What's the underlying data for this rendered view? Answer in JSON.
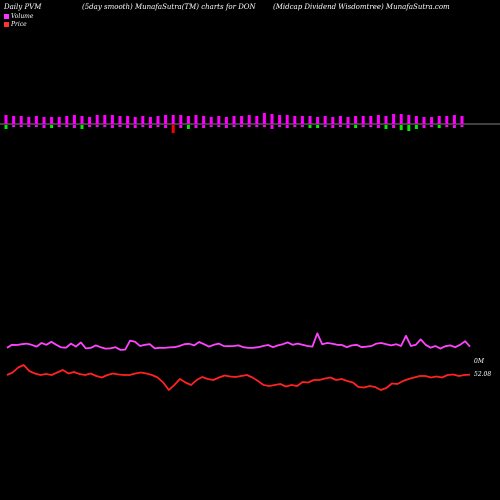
{
  "header": {
    "left": "Daily PVM",
    "mid": "(5day smooth) MunafaSutra(TM) charts for DON",
    "right": "(Midcap Dividend Wisdomtree) MunafaSutra.com"
  },
  "legend": {
    "volume_label": "Volume",
    "price_label": "Price",
    "volume_color": "#ff33ff",
    "price_color": "#ff3333"
  },
  "chart_data": [
    {
      "type": "bar",
      "subject": "volume bars",
      "colors": {
        "up": "#ff00ff",
        "down": "#00ee00",
        "neg": "#ff0000",
        "baseline": "#ffffff"
      },
      "bars": [
        {
          "up": 9,
          "down": 4,
          "dir": "green"
        },
        {
          "up": 8,
          "down": 2,
          "dir": "magenta"
        },
        {
          "up": 8,
          "down": 2,
          "dir": "magenta"
        },
        {
          "up": 7,
          "down": 2,
          "dir": "magenta"
        },
        {
          "up": 8,
          "down": 2,
          "dir": "magenta"
        },
        {
          "up": 7,
          "down": 3,
          "dir": "magenta"
        },
        {
          "up": 7,
          "down": 3,
          "dir": "green"
        },
        {
          "up": 7,
          "down": 2,
          "dir": "magenta"
        },
        {
          "up": 8,
          "down": 2,
          "dir": "magenta"
        },
        {
          "up": 9,
          "down": 3,
          "dir": "magenta"
        },
        {
          "up": 8,
          "down": 4,
          "dir": "green"
        },
        {
          "up": 7,
          "down": 2,
          "dir": "magenta"
        },
        {
          "up": 9,
          "down": 2,
          "dir": "magenta"
        },
        {
          "up": 9,
          "down": 2,
          "dir": "magenta"
        },
        {
          "up": 9,
          "down": 3,
          "dir": "magenta"
        },
        {
          "up": 8,
          "down": 2,
          "dir": "magenta"
        },
        {
          "up": 8,
          "down": 3,
          "dir": "magenta"
        },
        {
          "up": 7,
          "down": 3,
          "dir": "magenta"
        },
        {
          "up": 8,
          "down": 2,
          "dir": "magenta"
        },
        {
          "up": 7,
          "down": 3,
          "dir": "magenta"
        },
        {
          "up": 8,
          "down": 2,
          "dir": "magenta"
        },
        {
          "up": 9,
          "down": 3,
          "dir": "magenta"
        },
        {
          "up": 9,
          "down": 8,
          "dir": "red"
        },
        {
          "up": 9,
          "down": 3,
          "dir": "magenta"
        },
        {
          "up": 8,
          "down": 4,
          "dir": "green"
        },
        {
          "up": 9,
          "down": 3,
          "dir": "magenta"
        },
        {
          "up": 8,
          "down": 3,
          "dir": "magenta"
        },
        {
          "up": 7,
          "down": 2,
          "dir": "magenta"
        },
        {
          "up": 8,
          "down": 2,
          "dir": "magenta"
        },
        {
          "up": 7,
          "down": 3,
          "dir": "magenta"
        },
        {
          "up": 8,
          "down": 2,
          "dir": "magenta"
        },
        {
          "up": 8,
          "down": 2,
          "dir": "magenta"
        },
        {
          "up": 9,
          "down": 2,
          "dir": "magenta"
        },
        {
          "up": 8,
          "down": 2,
          "dir": "magenta"
        },
        {
          "up": 11,
          "down": 2,
          "dir": "magenta"
        },
        {
          "up": 10,
          "down": 4,
          "dir": "magenta"
        },
        {
          "up": 9,
          "down": 2,
          "dir": "magenta"
        },
        {
          "up": 9,
          "down": 3,
          "dir": "magenta"
        },
        {
          "up": 8,
          "down": 2,
          "dir": "magenta"
        },
        {
          "up": 8,
          "down": 2,
          "dir": "magenta"
        },
        {
          "up": 8,
          "down": 3,
          "dir": "green"
        },
        {
          "up": 7,
          "down": 3,
          "dir": "green"
        },
        {
          "up": 8,
          "down": 2,
          "dir": "magenta"
        },
        {
          "up": 7,
          "down": 3,
          "dir": "magenta"
        },
        {
          "up": 8,
          "down": 2,
          "dir": "magenta"
        },
        {
          "up": 7,
          "down": 3,
          "dir": "magenta"
        },
        {
          "up": 8,
          "down": 3,
          "dir": "green"
        },
        {
          "up": 8,
          "down": 2,
          "dir": "magenta"
        },
        {
          "up": 8,
          "down": 2,
          "dir": "magenta"
        },
        {
          "up": 9,
          "down": 3,
          "dir": "magenta"
        },
        {
          "up": 8,
          "down": 4,
          "dir": "green"
        },
        {
          "up": 10,
          "down": 3,
          "dir": "magenta"
        },
        {
          "up": 10,
          "down": 5,
          "dir": "green"
        },
        {
          "up": 9,
          "down": 6,
          "dir": "green"
        },
        {
          "up": 8,
          "down": 4,
          "dir": "green"
        },
        {
          "up": 7,
          "down": 3,
          "dir": "magenta"
        },
        {
          "up": 7,
          "down": 2,
          "dir": "magenta"
        },
        {
          "up": 8,
          "down": 3,
          "dir": "green"
        },
        {
          "up": 8,
          "down": 2,
          "dir": "magenta"
        },
        {
          "up": 9,
          "down": 3,
          "dir": "magenta"
        },
        {
          "up": 8,
          "down": 2,
          "dir": "magenta"
        }
      ]
    },
    {
      "type": "line",
      "subject": "volume line (smoothed)",
      "color": "#ff44ff",
      "end_label": "0M",
      "values": [
        63.5,
        66.0,
        65.8,
        66.5,
        67.0,
        66.0,
        64.5,
        67.5,
        66.0,
        68.5,
        66.0,
        63.8,
        63.6,
        67.0,
        64.5,
        68.0,
        63.0,
        63.4,
        65.5,
        64.0,
        62.8,
        63.0,
        64.0,
        61.8,
        62.0,
        69.5,
        68.5,
        65.0,
        66.0,
        66.5,
        63.0,
        63.5,
        63.4,
        63.8,
        64.0,
        65.0,
        66.5,
        66.8,
        65.5,
        68.3,
        66.5,
        64.5,
        66.0,
        67.0,
        65.0,
        64.8,
        65.0,
        65.5,
        64.0,
        63.4,
        63.5,
        64.0,
        65.0,
        65.8,
        64.0,
        65.5,
        66.5,
        68.0,
        66.0,
        67.0,
        66.0,
        65.0,
        64.5,
        75.5,
        66.5,
        67.5,
        67.0,
        66.0,
        65.8,
        64.0,
        65.5,
        66.0,
        64.0,
        64.5,
        65.0,
        67.0,
        67.5,
        66.5,
        65.5,
        66.5,
        65.0,
        73.5,
        65.0,
        66.0,
        70.5,
        66.0,
        63.6,
        65.0,
        62.8,
        64.8,
        65.5,
        64.0,
        66.0,
        69.0,
        64.5
      ]
    },
    {
      "type": "line",
      "subject": "price line",
      "color": "#ff2222",
      "end_label": "52.08",
      "values": [
        52.0,
        52.5,
        53.5,
        54.0,
        52.8,
        52.3,
        52.0,
        52.2,
        52.0,
        52.5,
        53.0,
        52.3,
        52.6,
        52.2,
        52.0,
        52.3,
        51.8,
        51.5,
        52.0,
        52.3,
        52.1,
        52.0,
        52.0,
        52.3,
        52.5,
        52.3,
        52.0,
        51.5,
        50.5,
        49.0,
        50.0,
        51.2,
        50.5,
        50.0,
        51.0,
        51.6,
        51.2,
        51.0,
        51.5,
        51.9,
        51.7,
        51.6,
        51.8,
        52.0,
        51.5,
        50.8,
        50.0,
        49.8,
        50.0,
        50.2,
        49.7,
        50.0,
        49.8,
        50.6,
        50.5,
        51.0,
        51.0,
        51.3,
        51.5,
        51.0,
        51.2,
        50.8,
        50.5,
        49.6,
        49.5,
        49.8,
        49.6,
        49.0,
        49.4,
        50.3,
        50.2,
        50.8,
        51.2,
        51.5,
        51.8,
        51.8,
        51.5,
        51.7,
        51.5,
        52.0,
        52.1,
        51.8,
        52.0,
        52.08
      ]
    }
  ]
}
